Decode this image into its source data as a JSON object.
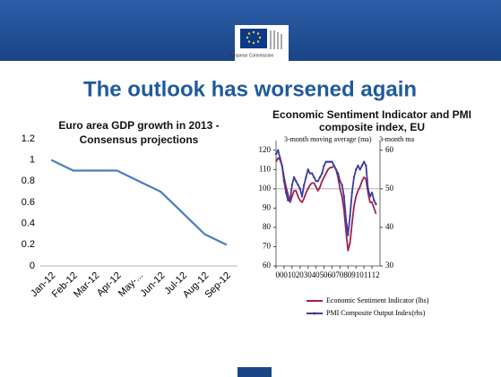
{
  "slide": {
    "title": "The outlook has worsened again",
    "logo_text": "European Commission"
  },
  "chart_data": [
    {
      "type": "line",
      "title": "Euro area GDP growth in 2013 - Consensus projections",
      "categories": [
        "Jan-12",
        "Feb-12",
        "Mar-12",
        "Apr-12",
        "May-...",
        "Jun-12",
        "Jul-12",
        "Aug-12",
        "Sep-12"
      ],
      "values": [
        1,
        0.9,
        0.9,
        0.9,
        0.8,
        0.7,
        0.5,
        0.3,
        0.2
      ],
      "color": "#4a7ebb",
      "ylim": [
        0,
        1.2
      ],
      "yticks": [
        0,
        0.2,
        0.4,
        0.6,
        0.8,
        1,
        1.2
      ],
      "grid": false
    },
    {
      "type": "line",
      "title": "Economic Sentiment Indicator and PMI composite index, EU",
      "annotations": [
        "3-month moving average (ma)",
        "3-month ma"
      ],
      "x": [
        2000,
        2000.25,
        2000.5,
        2000.75,
        2001,
        2001.25,
        2001.5,
        2001.75,
        2002,
        2002.25,
        2002.5,
        2002.75,
        2003,
        2003.25,
        2003.5,
        2003.75,
        2004,
        2004.25,
        2004.5,
        2004.75,
        2005,
        2005.25,
        2005.5,
        2005.75,
        2006,
        2006.25,
        2006.5,
        2006.75,
        2007,
        2007.25,
        2007.5,
        2007.75,
        2008,
        2008.25,
        2008.5,
        2008.75,
        2009,
        2009.25,
        2009.5,
        2009.75,
        2010,
        2010.25,
        2010.5,
        2010.75,
        2011,
        2011.25,
        2011.5,
        2011.75,
        2012,
        2012.25,
        2012.5
      ],
      "series": [
        {
          "name": "Economic Sentiment Indicator (lhs)",
          "color": "#a3204f",
          "axis": "y",
          "values": [
            114,
            116,
            115,
            112,
            106,
            101,
            97,
            93,
            96,
            99,
            99,
            96,
            94,
            93,
            95,
            98,
            100,
            102,
            103,
            103,
            101,
            99,
            101,
            104,
            106,
            108,
            110,
            111,
            111,
            112,
            110,
            106,
            100,
            96,
            89,
            78,
            68,
            72,
            82,
            91,
            96,
            99,
            101,
            104,
            106,
            105,
            98,
            93,
            93,
            90,
            87
          ]
        },
        {
          "name": "PMI Composite Output Index(rhs)",
          "color": "#3c3ca0",
          "axis": "y2",
          "values": [
            59,
            60,
            58,
            56,
            52,
            49,
            47,
            47,
            51,
            53,
            52,
            51,
            50,
            48,
            51,
            53,
            55,
            54,
            54,
            53,
            52,
            52,
            53,
            54,
            56,
            57,
            57,
            57,
            57,
            56,
            55,
            54,
            52,
            51,
            48,
            42,
            38,
            43,
            49,
            53,
            55,
            56,
            55,
            56,
            57,
            56,
            50,
            48,
            49,
            47,
            46
          ]
        }
      ],
      "xlim": [
        2000,
        2013
      ],
      "xticks": [
        {
          "value": 2000,
          "label": "00"
        },
        {
          "value": 2001,
          "label": "01"
        },
        {
          "value": 2002,
          "label": "02"
        },
        {
          "value": 2003,
          "label": "03"
        },
        {
          "value": 2004,
          "label": "04"
        },
        {
          "value": 2005,
          "label": "05"
        },
        {
          "value": 2006,
          "label": "06"
        },
        {
          "value": 2007,
          "label": "07"
        },
        {
          "value": 2008,
          "label": "08"
        },
        {
          "value": 2009,
          "label": "09"
        },
        {
          "value": 2010,
          "label": "10"
        },
        {
          "value": 2011,
          "label": "11"
        },
        {
          "value": 2012,
          "label": "12"
        }
      ],
      "ylim": [
        60,
        125
      ],
      "yticks": [
        60,
        70,
        80,
        90,
        100,
        110,
        120
      ],
      "y2lim": [
        30,
        62.5
      ],
      "y2ticks": [
        30,
        40,
        50,
        60
      ],
      "reference_line": 100,
      "grid": false
    }
  ]
}
